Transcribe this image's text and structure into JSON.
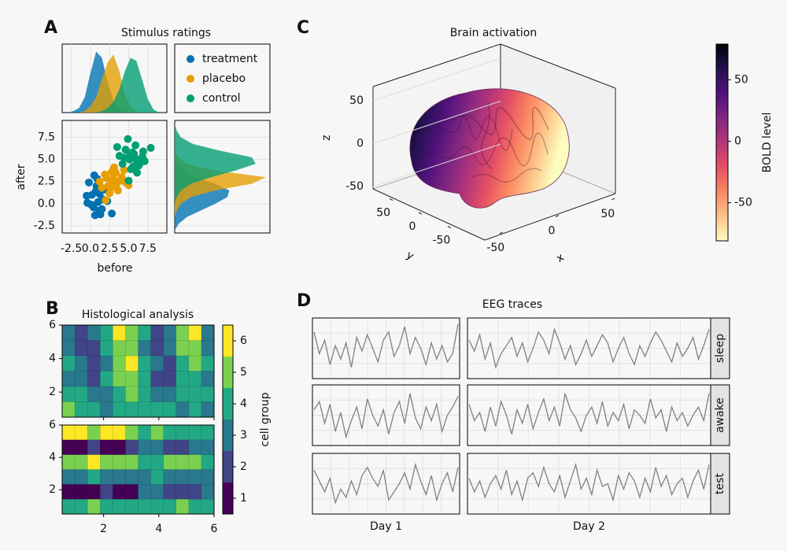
{
  "chart_data": [
    {
      "type": "scatter",
      "panel": "A",
      "title": "Stimulus ratings",
      "xlabel": "before",
      "ylabel": "after",
      "xlim": [
        -3.7,
        10
      ],
      "ylim": [
        -3.3,
        9.4
      ],
      "xticks": [
        -2.5,
        {
          "value": 0,
          "label": "0.0"
        },
        2.5,
        {
          "value": 5,
          "label": "5.0"
        },
        7.5
      ],
      "yticks": [
        -2.5,
        {
          "value": 0,
          "label": "0.0"
        },
        2.5,
        {
          "value": 5,
          "label": "5.0"
        },
        7.5
      ],
      "grid": true,
      "series": [
        {
          "name": "treatment",
          "color": "#0072b2",
          "x": [
            0.2,
            1.1,
            0.8,
            1.6,
            -0.5,
            0.5,
            1.9,
            0.1,
            1.3,
            2.2,
            0.7,
            -0.2,
            1.0,
            1.5,
            0.4,
            2.8,
            0.9,
            1.2,
            -0.4,
            0.6
          ],
          "y": [
            1.0,
            -0.8,
            2.0,
            0.5,
            0.9,
            3.2,
            1.6,
            -0.1,
            -1.2,
            0.3,
            1.4,
            2.4,
            0.2,
            -0.6,
            -0.4,
            -1.1,
            2.8,
            1.1,
            0.1,
            -1.3
          ]
        },
        {
          "name": "placebo",
          "color": "#e69f00",
          "x": [
            2.1,
            3.4,
            2.8,
            1.5,
            3.9,
            2.5,
            4.6,
            3.1,
            1.9,
            2.3,
            4.1,
            3.6,
            2.7,
            1.2,
            3.3,
            5.0,
            2.0,
            4.4,
            2.9,
            3.0
          ],
          "y": [
            2.9,
            2.2,
            3.6,
            1.8,
            2.6,
            1.2,
            2.4,
            4.1,
            3.3,
            2.0,
            3.0,
            1.5,
            2.7,
            2.5,
            3.5,
            2.1,
            0.4,
            3.8,
            1.9,
            2.8
          ]
        },
        {
          "name": "control",
          "color": "#009e73",
          "x": [
            5.1,
            6.3,
            4.6,
            5.7,
            7.1,
            4.2,
            5.9,
            6.8,
            5.3,
            3.8,
            6.1,
            5.5,
            4.9,
            7.9,
            6.5,
            5.0,
            4.4,
            6.0,
            5.6,
            3.5,
            6.9,
            5.2
          ],
          "y": [
            5.0,
            4.3,
            6.1,
            5.6,
            4.8,
            4.5,
            6.6,
            5.3,
            3.9,
            5.4,
            3.5,
            5.8,
            7.3,
            6.3,
            4.6,
            2.6,
            5.2,
            5.0,
            4.2,
            6.4,
            5.9,
            5.7
          ]
        }
      ]
    },
    {
      "type": "density",
      "orientation": "vertical",
      "ylim": [
        0,
        0.45
      ],
      "x": [
        -3,
        -2.25,
        -1.5,
        -0.75,
        0,
        0.75,
        1.5,
        2.25,
        3,
        3.75,
        4.5,
        5.25,
        6,
        6.75,
        7.5,
        8.25,
        9
      ],
      "series": [
        {
          "color": "#0072b2",
          "values": [
            0,
            0.01,
            0.03,
            0.1,
            0.26,
            0.4,
            0.36,
            0.2,
            0.08,
            0.02,
            0.01,
            0,
            0,
            0,
            0,
            0,
            0
          ]
        },
        {
          "color": "#e69f00",
          "values": [
            0,
            0,
            0,
            0.01,
            0.04,
            0.1,
            0.22,
            0.33,
            0.38,
            0.28,
            0.12,
            0.04,
            0.01,
            0,
            0,
            0,
            0
          ]
        },
        {
          "color": "#009e73",
          "values": [
            0,
            0,
            0,
            0,
            0,
            0,
            0.01,
            0.03,
            0.07,
            0.15,
            0.27,
            0.36,
            0.34,
            0.22,
            0.09,
            0.02,
            0
          ]
        }
      ]
    },
    {
      "type": "density",
      "orientation": "horizontal",
      "xlim": [
        0,
        0.47
      ],
      "y": [
        -3,
        -2.25,
        -1.5,
        -0.75,
        0,
        0.75,
        1.5,
        2.25,
        3,
        3.75,
        4.5,
        5.25,
        6,
        6.75,
        7.5,
        8.25,
        9
      ],
      "series": [
        {
          "color": "#0072b2",
          "values": [
            0,
            0.02,
            0.06,
            0.13,
            0.2,
            0.26,
            0.27,
            0.2,
            0.1,
            0.04,
            0.01,
            0,
            0,
            0,
            0,
            0,
            0
          ]
        },
        {
          "color": "#e69f00",
          "values": [
            0,
            0,
            0,
            0.01,
            0.03,
            0.08,
            0.2,
            0.38,
            0.45,
            0.2,
            0.06,
            0.02,
            0,
            0,
            0,
            0,
            0
          ]
        },
        {
          "color": "#009e73",
          "values": [
            0,
            0,
            0,
            0,
            0,
            0.01,
            0.03,
            0.08,
            0.18,
            0.3,
            0.4,
            0.38,
            0.22,
            0.09,
            0.03,
            0.01,
            0
          ]
        }
      ]
    },
    {
      "type": "surface3d",
      "panel": "C",
      "title": "Brain activation",
      "xlabel": "x",
      "ylabel": "y",
      "zlabel": "z",
      "xlim": [
        -80,
        80
      ],
      "ylim": [
        -80,
        80
      ],
      "zlim": [
        -60,
        60
      ],
      "xticks": [
        -50,
        0,
        50
      ],
      "yticks": [
        -50,
        0,
        50
      ],
      "zticks": [
        -50,
        0,
        50
      ],
      "colorbar": {
        "label": "BOLD level",
        "lim": [
          -81,
          79
        ],
        "ticks": [
          -50,
          0,
          50
        ],
        "colormap": [
          "#fcfdbf",
          "#fec287",
          "#fb8761",
          "#e55064",
          "#b5367a",
          "#822681",
          "#51127c",
          "#221150",
          "#000004"
        ]
      }
    },
    {
      "type": "contour",
      "panel": "B",
      "title": "Histological analysis",
      "xlim": [
        0.5,
        6
      ],
      "ylim": [
        0.5,
        6
      ],
      "xticks": [
        2,
        4,
        6
      ],
      "yticks": [
        2,
        4,
        6
      ],
      "panels": [
        {
          "z": [
            [
              3,
              2,
              3,
              4,
              6,
              5,
              4,
              2,
              3,
              5,
              6,
              3
            ],
            [
              3,
              2,
              2,
              4,
              5,
              5,
              3,
              2,
              3,
              5,
              5,
              3
            ],
            [
              4,
              3,
              2,
              3,
              5,
              6,
              4,
              3,
              2,
              4,
              5,
              4
            ],
            [
              3,
              3,
              2,
              4,
              5,
              5,
              4,
              2,
              2,
              4,
              4,
              3
            ],
            [
              4,
              4,
              3,
              3,
              4,
              5,
              4,
              3,
              3,
              4,
              4,
              4
            ],
            [
              5,
              4,
              4,
              3,
              4,
              4,
              4,
              4,
              4,
              3,
              4,
              3
            ]
          ]
        },
        {
          "z": [
            [
              6,
              6,
              5,
              6,
              6,
              5,
              4,
              5,
              4,
              4,
              4,
              4
            ],
            [
              1,
              1,
              2,
              1,
              1,
              2,
              3,
              3,
              2,
              2,
              3,
              3
            ],
            [
              5,
              5,
              6,
              5,
              5,
              5,
              4,
              4,
              5,
              5,
              5,
              4
            ],
            [
              3,
              3,
              4,
              3,
              3,
              3,
              3,
              4,
              3,
              3,
              3,
              3
            ],
            [
              1,
              1,
              1,
              2,
              1,
              1,
              3,
              3,
              2,
              2,
              2,
              3
            ],
            [
              4,
              4,
              5,
              4,
              4,
              4,
              4,
              4,
              4,
              5,
              4,
              4
            ]
          ]
        }
      ],
      "colorbar": {
        "label": "cell group",
        "lim": [
          0.5,
          6.5
        ],
        "ticks": [
          1,
          2,
          3,
          4,
          5,
          6
        ],
        "colors": [
          "#440154",
          "#414487",
          "#2a788e",
          "#22a884",
          "#7ad151",
          "#fde725"
        ]
      }
    },
    {
      "type": "line",
      "panel": "D",
      "title": "EEG traces",
      "columns": [
        "Day 1",
        "Day 2"
      ],
      "color": "#808080",
      "ylim": [
        -1,
        1
      ],
      "rows": [
        {
          "label": "sleep",
          "traces": [
            [
              0.6,
              -0.2,
              0.3,
              -0.6,
              0.1,
              -0.4,
              0.2,
              -0.7,
              0.4,
              -0.1,
              0.5,
              0.0,
              -0.5,
              0.3,
              0.6,
              -0.3,
              0.1,
              0.8,
              -0.2,
              0.4,
              0.0,
              -0.6,
              0.2,
              -0.4,
              0.1,
              -0.5,
              -0.2,
              0.9
            ],
            [
              0.3,
              -0.1,
              0.5,
              -0.4,
              0.2,
              -0.7,
              -0.2,
              0.1,
              0.4,
              -0.3,
              0.2,
              -0.5,
              0.0,
              0.6,
              0.3,
              -0.2,
              0.7,
              0.2,
              -0.4,
              0.1,
              -0.6,
              -0.2,
              0.3,
              -0.3,
              0.1,
              0.5,
              0.2,
              -0.5,
              0.0,
              0.4,
              -0.2,
              -0.6,
              0.1,
              -0.3,
              0.2,
              0.6,
              0.3,
              -0.1,
              -0.5,
              0.2,
              -0.3,
              0.0,
              0.4,
              -0.4,
              0.1,
              0.7
            ]
          ]
        },
        {
          "label": "awake",
          "traces": [
            [
              0.2,
              0.5,
              -0.3,
              0.4,
              -0.6,
              0.1,
              -0.8,
              -0.2,
              0.3,
              -0.5,
              0.6,
              0.0,
              -0.4,
              0.2,
              -0.7,
              0.1,
              0.5,
              -0.3,
              0.8,
              -0.1,
              -0.5,
              0.3,
              -0.2,
              0.4,
              -0.6,
              0.0,
              0.3,
              0.7
            ],
            [
              0.4,
              -0.2,
              0.1,
              -0.6,
              0.3,
              -0.4,
              0.5,
              0.0,
              -0.7,
              0.2,
              -0.3,
              0.4,
              -0.5,
              0.1,
              0.6,
              -0.2,
              0.3,
              -0.4,
              0.8,
              0.2,
              -0.1,
              -0.6,
              0.0,
              0.3,
              -0.3,
              0.5,
              -0.4,
              0.1,
              -0.2,
              0.4,
              -0.5,
              0.2,
              0.0,
              -0.3,
              0.6,
              -0.1,
              0.2,
              -0.6,
              0.3,
              -0.2,
              0.1,
              -0.4,
              0.0,
              0.3,
              -0.2,
              0.8
            ]
          ]
        },
        {
          "label": "test",
          "traces": [
            [
              0.5,
              0.1,
              -0.3,
              0.2,
              -0.7,
              -0.2,
              -0.5,
              0.1,
              -0.4,
              0.3,
              0.6,
              0.2,
              -0.1,
              0.5,
              -0.6,
              -0.3,
              0.0,
              0.4,
              -0.2,
              0.7,
              0.1,
              -0.4,
              0.3,
              -0.6,
              0.0,
              0.4,
              -0.3,
              0.6
            ],
            [
              0.2,
              -0.3,
              0.1,
              -0.5,
              0.0,
              0.3,
              -0.2,
              0.5,
              -0.4,
              0.1,
              -0.6,
              0.2,
              0.4,
              -0.1,
              0.6,
              0.0,
              -0.3,
              0.3,
              -0.5,
              0.1,
              0.7,
              -0.2,
              0.2,
              -0.4,
              0.5,
              -0.1,
              0.0,
              -0.6,
              0.3,
              -0.2,
              0.4,
              0.1,
              -0.5,
              0.2,
              -0.3,
              0.6,
              -0.1,
              0.3,
              -0.4,
              0.0,
              0.2,
              -0.5,
              0.1,
              0.5,
              -0.2,
              0.7
            ]
          ]
        }
      ]
    }
  ]
}
